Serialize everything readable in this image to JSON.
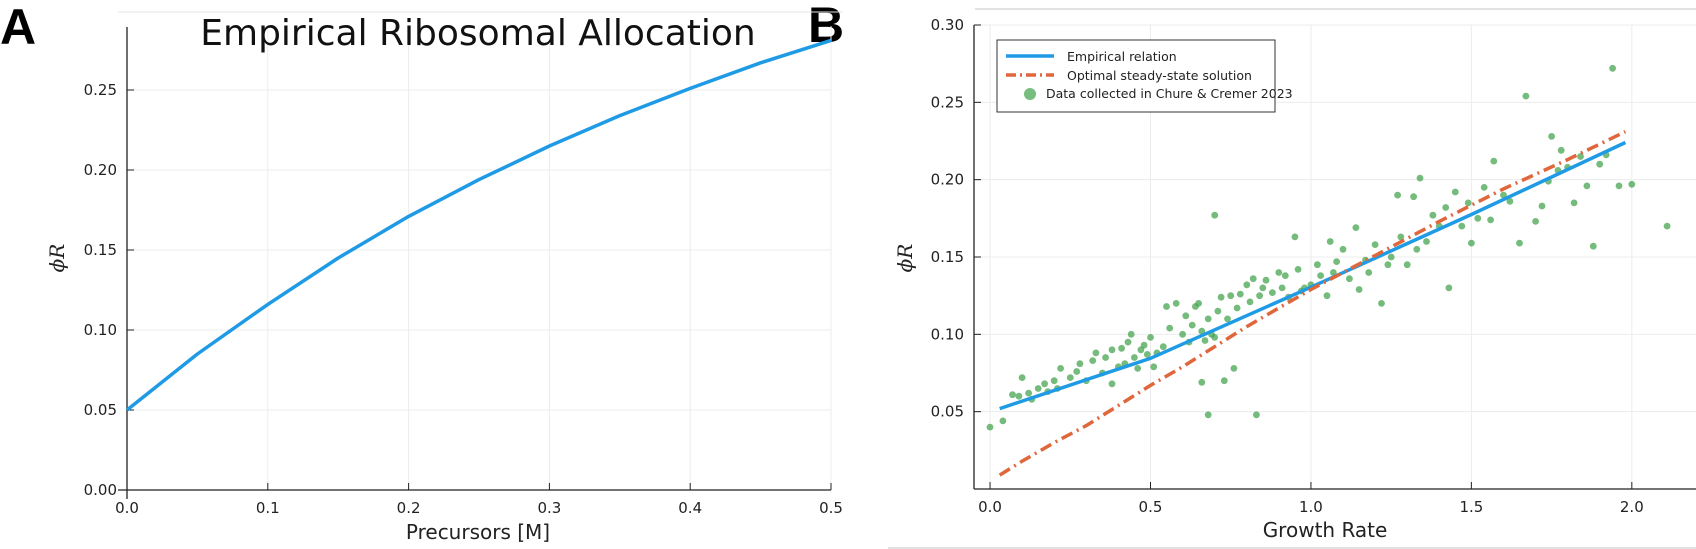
{
  "panel_a": {
    "letter": "A",
    "chart_data": {
      "type": "line",
      "title": "Empirical Ribosomal Allocation",
      "xlabel": "Precursors [M]",
      "ylabel": "ϕR",
      "xlim": [
        0,
        0.5
      ],
      "ylim": [
        0,
        0.29
      ],
      "xticks": [
        0.0,
        0.1,
        0.2,
        0.3,
        0.4,
        0.5
      ],
      "xtick_labels": [
        "0.0",
        "0.1",
        "0.2",
        "0.3",
        "0.4",
        "0.5"
      ],
      "yticks": [
        0.0,
        0.05,
        0.1,
        0.15,
        0.2,
        0.25
      ],
      "ytick_labels": [
        "0.00",
        "0.05",
        "0.10",
        "0.15",
        "0.20",
        "0.25"
      ],
      "grid": true,
      "series": [
        {
          "color": "#1f9be6",
          "x": [
            0.0,
            0.05,
            0.1,
            0.15,
            0.2,
            0.25,
            0.3,
            0.35,
            0.4,
            0.45,
            0.5
          ],
          "y": [
            0.05,
            0.085,
            0.116,
            0.145,
            0.171,
            0.194,
            0.215,
            0.234,
            0.251,
            0.267,
            0.281
          ]
        }
      ]
    }
  },
  "panel_b": {
    "letter": "B",
    "chart_data": {
      "type": "scatter",
      "title": "",
      "xlabel": "Growth Rate",
      "ylabel": "ϕR",
      "xlim": [
        -0.05,
        2.2
      ],
      "ylim": [
        0,
        0.3
      ],
      "xticks": [
        0.0,
        0.5,
        1.0,
        1.5,
        2.0
      ],
      "xtick_labels": [
        "0.0",
        "0.5",
        "1.0",
        "1.5",
        "2.0"
      ],
      "yticks": [
        0.05,
        0.1,
        0.15,
        0.2,
        0.25,
        0.3
      ],
      "ytick_labels": [
        "0.05",
        "0.10",
        "0.15",
        "0.20",
        "0.25",
        "0.30"
      ],
      "grid": true,
      "legend_position": "top-left",
      "series": [
        {
          "name": "Empirical relation",
          "type": "line",
          "color": "#1f9be6",
          "x": [
            0.03,
            0.5,
            1.0,
            1.5,
            1.98
          ],
          "y": [
            0.052,
            0.0845,
            0.1305,
            0.1775,
            0.224
          ]
        },
        {
          "name": "Optimal steady-state solution",
          "type": "line",
          "dash": "dashdot",
          "color": "#e0663b",
          "x": [
            0.03,
            0.1,
            0.2,
            0.3,
            0.4,
            0.5,
            0.6,
            0.7,
            0.8,
            0.9,
            1.0,
            1.2,
            1.4,
            1.6,
            1.8,
            1.98
          ],
          "y": [
            0.009,
            0.018,
            0.03,
            0.041,
            0.054,
            0.067,
            0.079,
            0.092,
            0.105,
            0.117,
            0.129,
            0.151,
            0.173,
            0.194,
            0.213,
            0.231
          ]
        },
        {
          "name": "Data collected in Chure & Cremer 2023",
          "type": "scatter",
          "color": "#3fa14a",
          "points": [
            [
              0.0,
              0.04
            ],
            [
              0.04,
              0.044
            ],
            [
              0.07,
              0.061
            ],
            [
              0.09,
              0.06
            ],
            [
              0.1,
              0.072
            ],
            [
              0.12,
              0.062
            ],
            [
              0.13,
              0.058
            ],
            [
              0.15,
              0.065
            ],
            [
              0.17,
              0.068
            ],
            [
              0.18,
              0.063
            ],
            [
              0.2,
              0.07
            ],
            [
              0.21,
              0.065
            ],
            [
              0.22,
              0.078
            ],
            [
              0.25,
              0.072
            ],
            [
              0.27,
              0.076
            ],
            [
              0.28,
              0.081
            ],
            [
              0.3,
              0.07
            ],
            [
              0.32,
              0.083
            ],
            [
              0.33,
              0.088
            ],
            [
              0.35,
              0.075
            ],
            [
              0.36,
              0.085
            ],
            [
              0.38,
              0.09
            ],
            [
              0.38,
              0.068
            ],
            [
              0.4,
              0.079
            ],
            [
              0.41,
              0.091
            ],
            [
              0.42,
              0.081
            ],
            [
              0.43,
              0.095
            ],
            [
              0.44,
              0.1
            ],
            [
              0.45,
              0.085
            ],
            [
              0.46,
              0.078
            ],
            [
              0.47,
              0.09
            ],
            [
              0.48,
              0.093
            ],
            [
              0.49,
              0.087
            ],
            [
              0.5,
              0.098
            ],
            [
              0.51,
              0.079
            ],
            [
              0.52,
              0.088
            ],
            [
              0.54,
              0.092
            ],
            [
              0.55,
              0.118
            ],
            [
              0.56,
              0.104
            ],
            [
              0.58,
              0.12
            ],
            [
              0.6,
              0.1
            ],
            [
              0.61,
              0.112
            ],
            [
              0.62,
              0.095
            ],
            [
              0.63,
              0.106
            ],
            [
              0.64,
              0.118
            ],
            [
              0.65,
              0.12
            ],
            [
              0.66,
              0.102
            ],
            [
              0.66,
              0.069
            ],
            [
              0.67,
              0.096
            ],
            [
              0.68,
              0.11
            ],
            [
              0.68,
              0.048
            ],
            [
              0.69,
              0.1
            ],
            [
              0.7,
              0.098
            ],
            [
              0.7,
              0.177
            ],
            [
              0.71,
              0.115
            ],
            [
              0.72,
              0.124
            ],
            [
              0.73,
              0.07
            ],
            [
              0.74,
              0.11
            ],
            [
              0.75,
              0.125
            ],
            [
              0.76,
              0.078
            ],
            [
              0.77,
              0.117
            ],
            [
              0.78,
              0.126
            ],
            [
              0.8,
              0.132
            ],
            [
              0.81,
              0.121
            ],
            [
              0.82,
              0.136
            ],
            [
              0.83,
              0.048
            ],
            [
              0.84,
              0.125
            ],
            [
              0.85,
              0.13
            ],
            [
              0.86,
              0.135
            ],
            [
              0.88,
              0.127
            ],
            [
              0.9,
              0.14
            ],
            [
              0.91,
              0.13
            ],
            [
              0.92,
              0.138
            ],
            [
              0.93,
              0.124
            ],
            [
              0.95,
              0.163
            ],
            [
              0.96,
              0.142
            ],
            [
              0.97,
              0.128
            ],
            [
              0.98,
              0.13
            ],
            [
              1.0,
              0.132
            ],
            [
              1.02,
              0.145
            ],
            [
              1.03,
              0.138
            ],
            [
              1.05,
              0.125
            ],
            [
              1.06,
              0.16
            ],
            [
              1.07,
              0.14
            ],
            [
              1.08,
              0.147
            ],
            [
              1.1,
              0.155
            ],
            [
              1.12,
              0.136
            ],
            [
              1.14,
              0.169
            ],
            [
              1.15,
              0.129
            ],
            [
              1.17,
              0.148
            ],
            [
              1.18,
              0.14
            ],
            [
              1.2,
              0.158
            ],
            [
              1.22,
              0.12
            ],
            [
              1.24,
              0.145
            ],
            [
              1.25,
              0.15
            ],
            [
              1.27,
              0.19
            ],
            [
              1.28,
              0.163
            ],
            [
              1.3,
              0.145
            ],
            [
              1.32,
              0.189
            ],
            [
              1.33,
              0.155
            ],
            [
              1.34,
              0.201
            ],
            [
              1.36,
              0.16
            ],
            [
              1.38,
              0.177
            ],
            [
              1.4,
              0.17
            ],
            [
              1.42,
              0.182
            ],
            [
              1.43,
              0.13
            ],
            [
              1.45,
              0.192
            ],
            [
              1.47,
              0.17
            ],
            [
              1.49,
              0.185
            ],
            [
              1.5,
              0.159
            ],
            [
              1.52,
              0.175
            ],
            [
              1.54,
              0.195
            ],
            [
              1.56,
              0.174
            ],
            [
              1.57,
              0.212
            ],
            [
              1.6,
              0.19
            ],
            [
              1.62,
              0.186
            ],
            [
              1.65,
              0.159
            ],
            [
              1.67,
              0.254
            ],
            [
              1.7,
              0.173
            ],
            [
              1.72,
              0.183
            ],
            [
              1.74,
              0.199
            ],
            [
              1.75,
              0.228
            ],
            [
              1.77,
              0.206
            ],
            [
              1.78,
              0.219
            ],
            [
              1.8,
              0.208
            ],
            [
              1.82,
              0.185
            ],
            [
              1.84,
              0.215
            ],
            [
              1.86,
              0.196
            ],
            [
              1.88,
              0.157
            ],
            [
              1.9,
              0.21
            ],
            [
              1.92,
              0.216
            ],
            [
              1.94,
              0.272
            ],
            [
              1.96,
              0.196
            ],
            [
              2.0,
              0.197
            ],
            [
              2.11,
              0.17
            ]
          ]
        }
      ]
    }
  }
}
